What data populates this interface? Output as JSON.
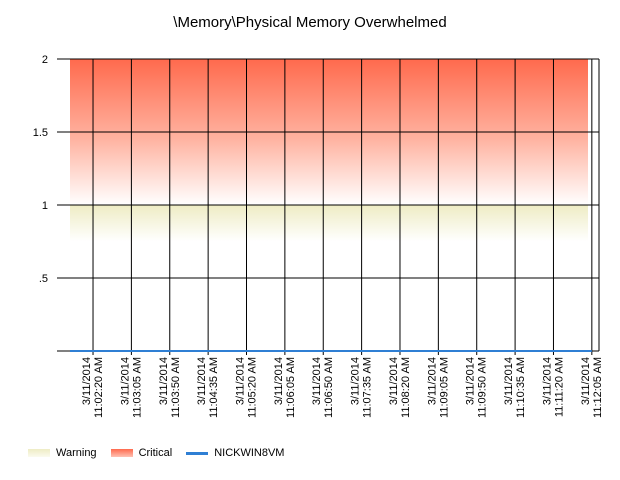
{
  "chart_data": {
    "type": "line",
    "title": "\\Memory\\Physical Memory Overwhelmed",
    "xlabel": "",
    "ylabel": "",
    "ylim": [
      0,
      2
    ],
    "y_ticks": [
      {
        "value": 0,
        "label": ""
      },
      {
        "value": 0.5,
        "label": ".5"
      },
      {
        "value": 1,
        "label": "1"
      },
      {
        "value": 1.5,
        "label": "1.5"
      },
      {
        "value": 2,
        "label": "2"
      }
    ],
    "categories": [
      [
        "3/11/2014",
        "11:02:20 AM"
      ],
      [
        "3/11/2014",
        "11:03:05 AM"
      ],
      [
        "3/11/2014",
        "11:03:50 AM"
      ],
      [
        "3/11/2014",
        "11:04:35 AM"
      ],
      [
        "3/11/2014",
        "11:05:20 AM"
      ],
      [
        "3/11/2014",
        "11:06:05 AM"
      ],
      [
        "3/11/2014",
        "11:06:50 AM"
      ],
      [
        "3/11/2014",
        "11:07:35 AM"
      ],
      [
        "3/11/2014",
        "11:08:20 AM"
      ],
      [
        "3/11/2014",
        "11:09:05 AM"
      ],
      [
        "3/11/2014",
        "11:09:50 AM"
      ],
      [
        "3/11/2014",
        "11:10:35 AM"
      ],
      [
        "3/11/2014",
        "11:11:20 AM"
      ],
      [
        "3/11/2014",
        "11:12:05 AM"
      ]
    ],
    "bands": [
      {
        "name": "Warning",
        "from": 0.75,
        "to": 1,
        "color": "#eeecc4"
      },
      {
        "name": "Critical",
        "from": 1,
        "to": 2,
        "color": "#ff6a4d"
      }
    ],
    "series": [
      {
        "name": "NICKWIN8VM",
        "color": "#2f7fd4",
        "values": [
          0,
          0,
          0,
          0,
          0,
          0,
          0,
          0,
          0,
          0,
          0,
          0,
          0,
          0
        ]
      }
    ],
    "legend": {
      "position": "bottom-left"
    },
    "grid": true
  }
}
